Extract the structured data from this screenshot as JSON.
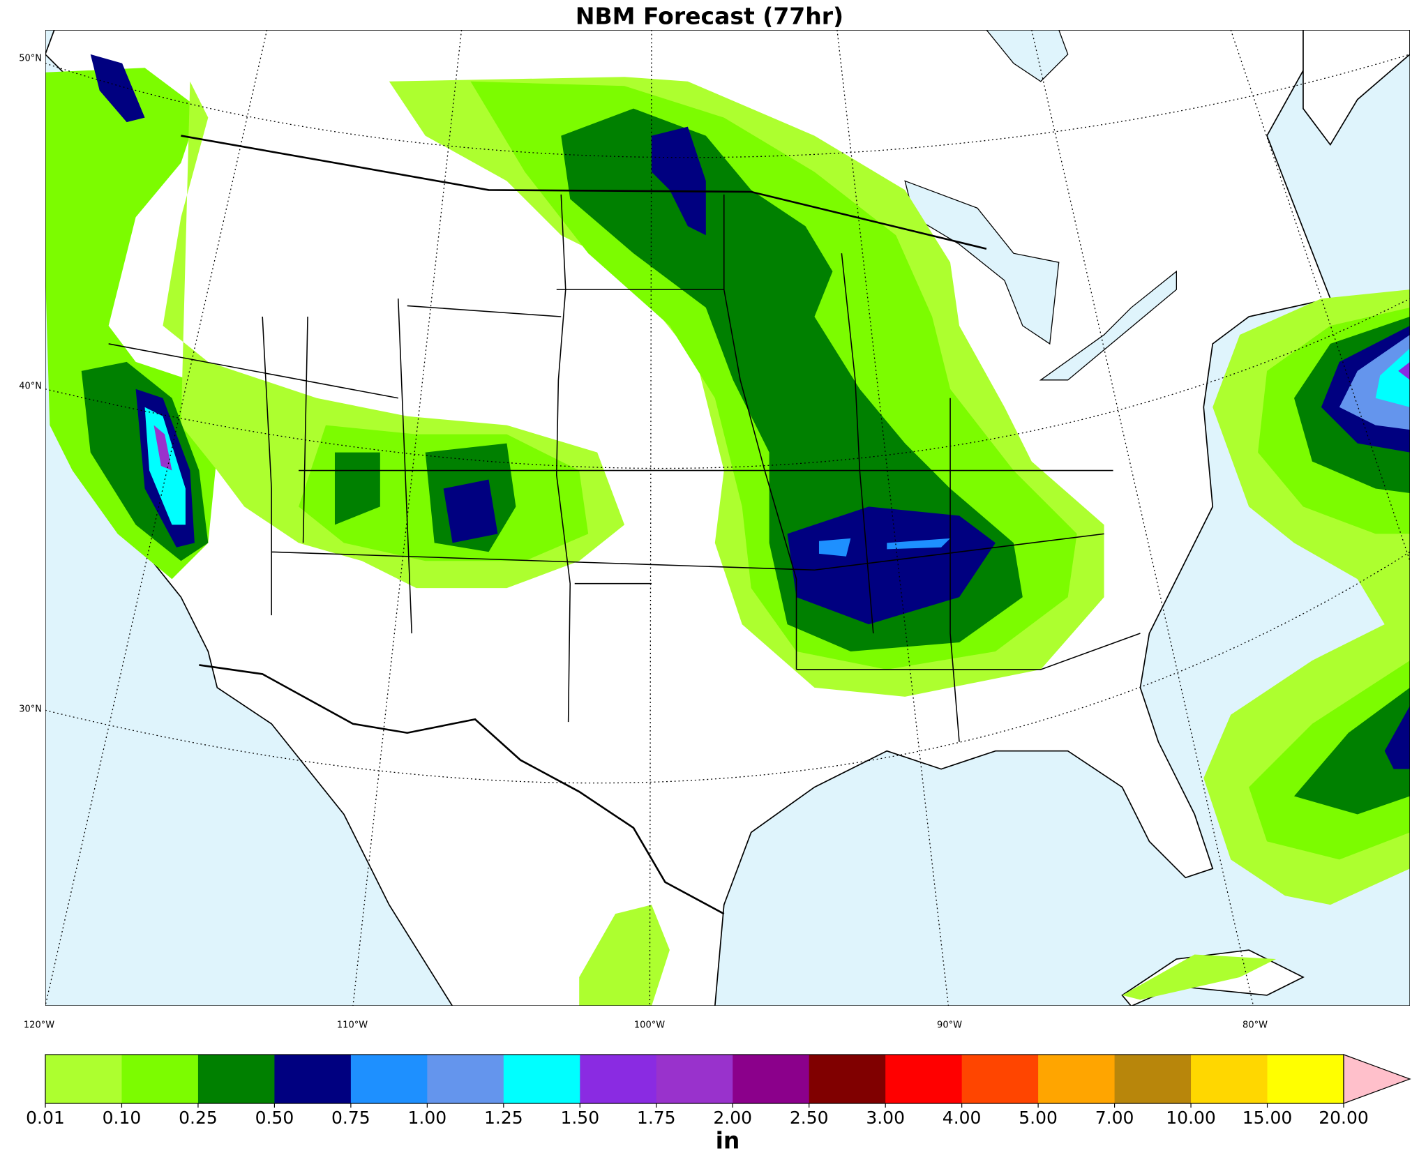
{
  "title": "NBM Forecast (77hr)",
  "map": {
    "lat_labels": [
      "50°N",
      "40°N",
      "30°N"
    ],
    "lon_labels": [
      "120°W",
      "110°W",
      "100°W",
      "90°W",
      "80°W"
    ]
  },
  "colorbar": {
    "levels": [
      0.01,
      {
        "value": 0.1,
        "label": "0.10"
      },
      0.25,
      {
        "value": 0.5,
        "label": "0.50"
      },
      0.75,
      {
        "value": 1,
        "label": "1.00"
      },
      1.25,
      {
        "value": 1.5,
        "label": "1.50"
      },
      1.75,
      {
        "value": 2,
        "label": "2.00"
      },
      {
        "value": 2.5,
        "label": "2.50"
      },
      {
        "value": 3,
        "label": "3.00"
      },
      {
        "value": 4,
        "label": "4.00"
      },
      {
        "value": 5,
        "label": "5.00"
      },
      {
        "value": 7,
        "label": "7.00"
      },
      {
        "value": 10,
        "label": "10.00"
      },
      {
        "value": 15,
        "label": "15.00"
      },
      {
        "value": 20,
        "label": "20.00"
      }
    ],
    "colors": [
      "#adff2f",
      "#7cfc00",
      "#008000",
      "#000080",
      "#1e90ff",
      "#6495ed",
      "#00ffff",
      "#8a2be2",
      "#9932cc",
      "#8b008b",
      "#800000",
      "#ff0000",
      "#ff4500",
      "#ffa500",
      "#b8860b",
      "#ffd700",
      "#ffff00"
    ],
    "extend_color": "#ffc0cb",
    "unit_label": "in"
  }
}
